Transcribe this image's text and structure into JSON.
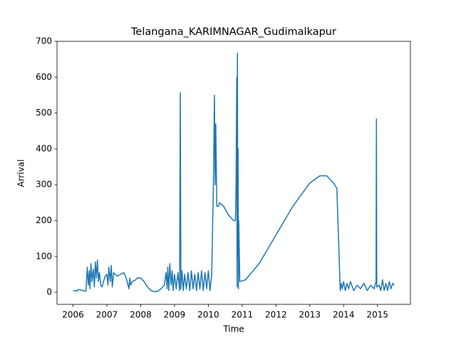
{
  "chart_data": {
    "type": "line",
    "title": "Telangana_KARIMNAGAR_Gudimalkapur",
    "x_label": "Time",
    "y_label": "Arrival",
    "color": "#1f77b4",
    "xlim": [
      2005.525,
      2015.975
    ],
    "ylim": [
      -33.5,
      700
    ],
    "xticks": [
      2006,
      2007,
      2008,
      2009,
      2010,
      2011,
      2012,
      2013,
      2014,
      2015
    ],
    "yticks": [
      0,
      100,
      200,
      300,
      400,
      500,
      600,
      700
    ],
    "x": [
      2006.0,
      2006.05,
      2006.1,
      2006.15,
      2006.3,
      2006.38,
      2006.42,
      2006.45,
      2006.48,
      2006.5,
      2006.53,
      2006.56,
      2006.6,
      2006.63,
      2006.66,
      2006.69,
      2006.72,
      2006.75,
      2006.78,
      2006.82,
      2006.86,
      2006.9,
      2006.95,
      2007.0,
      2007.03,
      2007.06,
      2007.1,
      2007.13,
      2007.16,
      2007.2,
      2007.3,
      2007.4,
      2007.5,
      2007.55,
      2007.6,
      2007.65,
      2007.68,
      2007.7,
      2007.75,
      2007.85,
      2007.9,
      2008.0,
      2008.1,
      2008.2,
      2008.3,
      2008.4,
      2008.5,
      2008.6,
      2008.7,
      2008.75,
      2008.78,
      2008.8,
      2008.83,
      2008.86,
      2008.9,
      2008.93,
      2008.96,
      2009.0,
      2009.05,
      2009.1,
      2009.15,
      2009.17,
      2009.19,
      2009.22,
      2009.26,
      2009.3,
      2009.35,
      2009.4,
      2009.45,
      2009.5,
      2009.55,
      2009.6,
      2009.65,
      2009.7,
      2009.75,
      2009.8,
      2009.85,
      2009.9,
      2009.95,
      2010.0,
      2010.05,
      2010.1,
      2010.15,
      2010.18,
      2010.2,
      2010.22,
      2010.25,
      2010.3,
      2010.33,
      2010.45,
      2010.6,
      2010.75,
      2010.8,
      2010.82,
      2010.84,
      2010.85,
      2010.86,
      2010.87,
      2010.88,
      2010.89,
      2010.9,
      2010.93,
      2011.1,
      2011.5,
      2012.0,
      2012.5,
      2013.0,
      2013.3,
      2013.5,
      2013.7,
      2013.8,
      2013.85,
      2013.9,
      2013.93,
      2013.96,
      2014.0,
      2014.05,
      2014.1,
      2014.15,
      2014.2,
      2014.3,
      2014.4,
      2014.5,
      2014.6,
      2014.7,
      2014.8,
      2014.9,
      2014.96,
      2014.97,
      2014.98,
      2015.05,
      2015.1,
      2015.15,
      2015.2,
      2015.25,
      2015.3,
      2015.35,
      2015.4,
      2015.45,
      2015.5
    ],
    "values": [
      5,
      5,
      3,
      8,
      5,
      3,
      70,
      20,
      60,
      10,
      80,
      30,
      65,
      15,
      85,
      40,
      90,
      30,
      55,
      20,
      15,
      30,
      45,
      50,
      20,
      70,
      30,
      75,
      15,
      55,
      45,
      50,
      55,
      45,
      30,
      10,
      40,
      20,
      30,
      35,
      40,
      40,
      30,
      15,
      5,
      2,
      3,
      10,
      20,
      55,
      10,
      70,
      5,
      80,
      20,
      60,
      5,
      50,
      10,
      55,
      5,
      557,
      10,
      60,
      5,
      50,
      10,
      55,
      5,
      60,
      10,
      50,
      5,
      55,
      10,
      60,
      5,
      55,
      10,
      60,
      5,
      50,
      300,
      550,
      300,
      470,
      240,
      240,
      250,
      240,
      215,
      200,
      200,
      300,
      600,
      15,
      667,
      100,
      400,
      10,
      200,
      30,
      35,
      80,
      160,
      240,
      305,
      325,
      325,
      305,
      290,
      150,
      5,
      25,
      10,
      30,
      5,
      25,
      10,
      30,
      5,
      20,
      10,
      25,
      5,
      20,
      10,
      30,
      483,
      15,
      20,
      5,
      35,
      5,
      25,
      5,
      30,
      10,
      25,
      20
    ]
  }
}
